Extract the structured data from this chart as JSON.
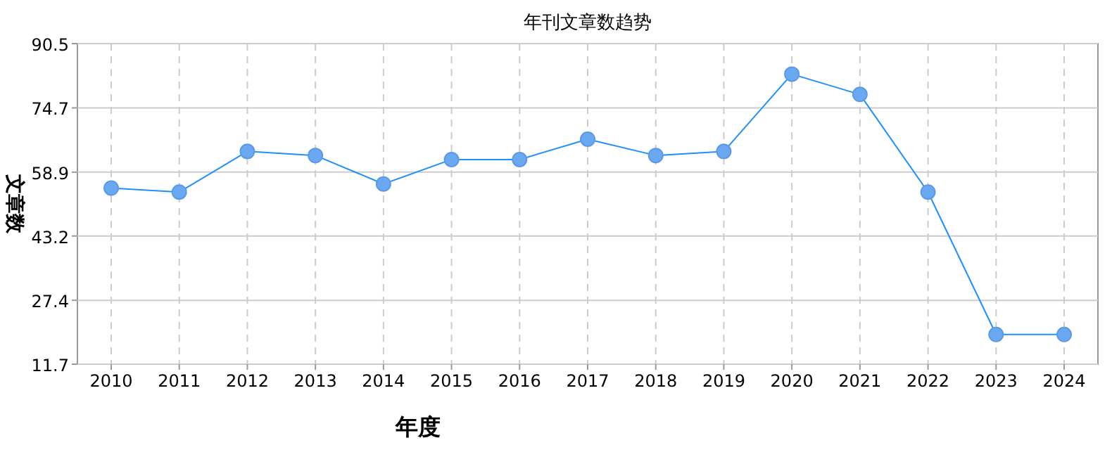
{
  "chart_data": {
    "type": "line",
    "title": "年刊文章数趋势",
    "xlabel": "年度",
    "ylabel": "文章数",
    "categories": [
      "2010",
      "2011",
      "2012",
      "2013",
      "2014",
      "2015",
      "2016",
      "2017",
      "2018",
      "2019",
      "2020",
      "2021",
      "2022",
      "2023",
      "2024"
    ],
    "series": [
      {
        "color": "#1e90ff",
        "values": [
          55,
          54,
          64,
          63,
          56,
          62,
          62,
          67,
          63,
          64,
          83,
          78,
          54,
          19,
          19
        ]
      }
    ],
    "ylim": [
      11.7,
      90.5
    ],
    "yticks": [
      11.7,
      27.4,
      43.2,
      58.9,
      74.7,
      90.5
    ],
    "grid": true,
    "marker": "circle",
    "line_style": "solid"
  }
}
